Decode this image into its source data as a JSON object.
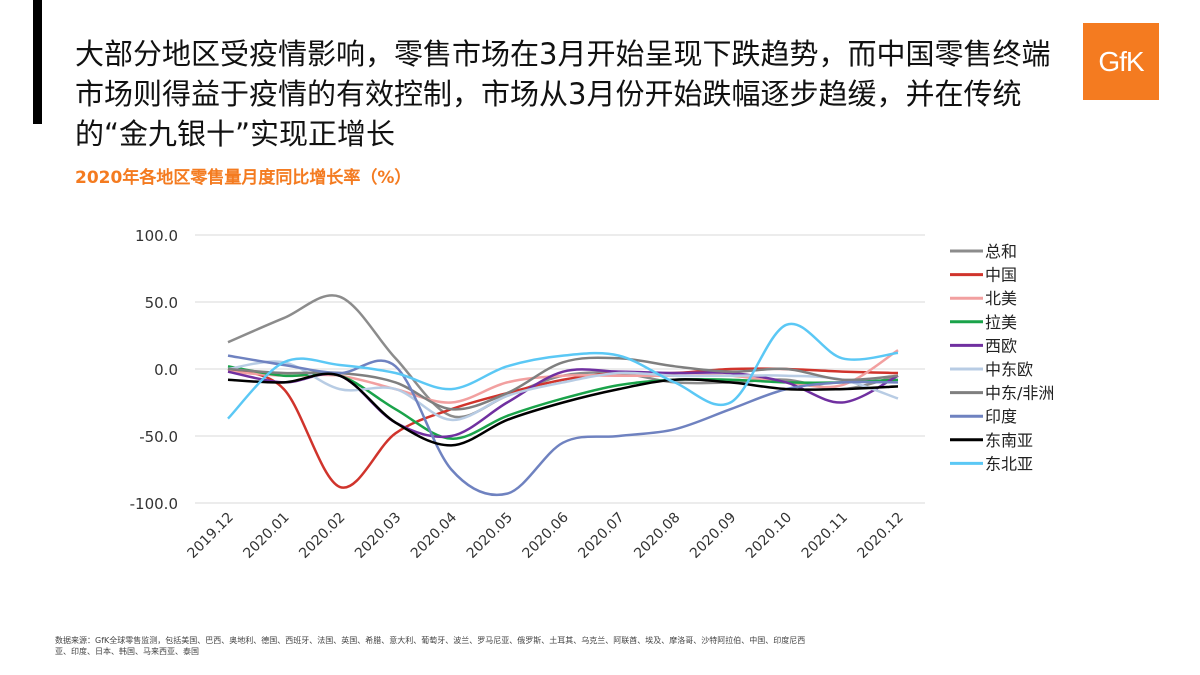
{
  "headline": "大部分地区受疫情影响，零售市场在3月开始呈现下跌趋势，而中国零售终端市场则得益于疫情的有效控制，市场从3月份开始跌幅逐步趋缓，并在传统的“金九银十”实现正增长",
  "logo_text": "GfK",
  "colors": {
    "accent": "#f47b20",
    "bar": "#000000"
  },
  "footnote": "数据来源：GfK全球零售监测，包括美国、巴西、奥地利、德国、西班牙、法国、英国、希腊、意大利、葡萄牙、波兰、罗马尼亚、俄罗斯、土耳其、乌克兰、阿联酋、埃及、摩洛哥、沙特阿拉伯、中国、印度尼西亚、印度、日本、韩国、马来西亚、泰国",
  "chart_data": {
    "type": "line",
    "title": "2020年各地区零售量月度同比增长率（%）",
    "categories": [
      "2019.12",
      "2020.01",
      "2020.02",
      "2020.03",
      "2020.04",
      "2020.05",
      "2020.06",
      "2020.07",
      "2020.08",
      "2020.09",
      "2020.10",
      "2020.11",
      "2020.12"
    ],
    "ylim": [
      -100,
      100
    ],
    "yticks": [
      100,
      50,
      0,
      -50,
      -100
    ],
    "ytick_labels": [
      "100.0",
      "50.0",
      "0.0",
      "-50.0",
      "-100.0"
    ],
    "grid": true,
    "legend": "right",
    "series": [
      {
        "name": "总和",
        "color": "#8c8c8c",
        "values": [
          20,
          38,
          54,
          8,
          -35,
          -20,
          -5,
          -3,
          -10,
          -10,
          -8,
          -15,
          -5
        ]
      },
      {
        "name": "中国",
        "color": "#d0342c",
        "values": [
          0,
          -15,
          -88,
          -48,
          -30,
          -18,
          -8,
          -3,
          -3,
          0,
          0,
          -2,
          -3
        ]
      },
      {
        "name": "北美",
        "color": "#f2a0a0",
        "values": [
          -2,
          -5,
          -5,
          -15,
          -25,
          -10,
          -5,
          -5,
          -5,
          -5,
          -10,
          -12,
          14
        ]
      },
      {
        "name": "拉美",
        "color": "#1aa34a",
        "values": [
          2,
          -5,
          -5,
          -30,
          -52,
          -35,
          -22,
          -12,
          -8,
          -8,
          -10,
          -10,
          -8
        ]
      },
      {
        "name": "西欧",
        "color": "#7030a0",
        "values": [
          -2,
          -10,
          -5,
          -40,
          -50,
          -25,
          -2,
          -2,
          -3,
          -3,
          -10,
          -25,
          -5
        ]
      },
      {
        "name": "中东欧",
        "color": "#b8cce4",
        "values": [
          0,
          5,
          -15,
          -15,
          -38,
          -20,
          -10,
          -3,
          -5,
          -5,
          -5,
          -8,
          -22
        ]
      },
      {
        "name": "中东/非洲",
        "color": "#7f7f7f",
        "values": [
          0,
          -3,
          -3,
          -10,
          -30,
          -18,
          5,
          8,
          2,
          -2,
          0,
          -8,
          -5
        ]
      },
      {
        "name": "印度",
        "color": "#6f82c0",
        "values": [
          10,
          3,
          -3,
          2,
          -75,
          -93,
          -55,
          -50,
          -45,
          -30,
          -15,
          -10,
          -10
        ]
      },
      {
        "name": "东南亚",
        "color": "#000000",
        "values": [
          -8,
          -10,
          -5,
          -40,
          -57,
          -38,
          -25,
          -15,
          -8,
          -10,
          -15,
          -15,
          -13
        ]
      },
      {
        "name": "东北亚",
        "color": "#5bc8f5",
        "values": [
          -37,
          5,
          3,
          -3,
          -15,
          2,
          10,
          10,
          -10,
          -25,
          33,
          8,
          12
        ]
      }
    ]
  }
}
